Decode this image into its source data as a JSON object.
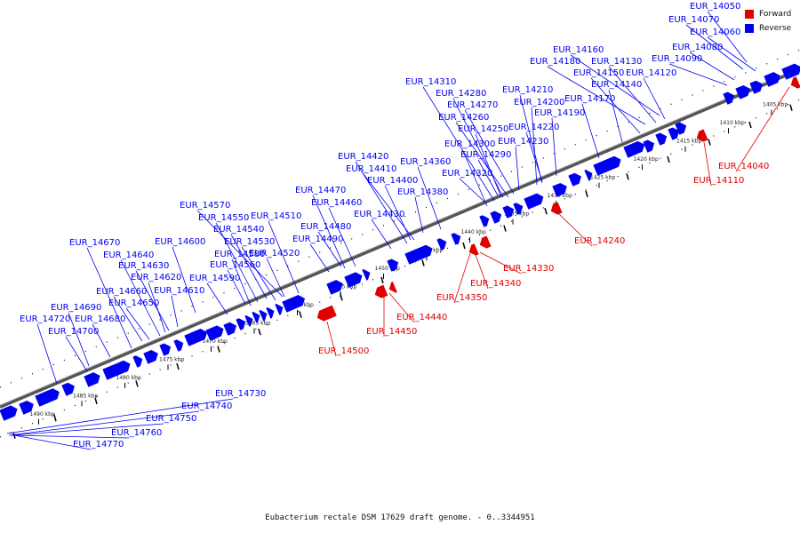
{
  "colors": {
    "forward": "#e00000",
    "reverse": "#0000f0",
    "backbone": "#333333",
    "tick": "#000000"
  },
  "legend": {
    "forward_label": "Forward",
    "reverse_label": "Reverse"
  },
  "caption": "Eubacterium rectale DSM 17629 draft genome. - 0..3344951",
  "kbp_labels": [
    "1405 kbp",
    "1410 kbp",
    "1415 kbp",
    "1420 kbp",
    "1425 kbp",
    "1430 kbp",
    "1435 kbp",
    "1440 kbp",
    "1445 kbp",
    "1450 kbp",
    "1455 kbp",
    "1460 kbp",
    "1465 kbp",
    "1470 kbp",
    "1475 kbp",
    "1480 kbp",
    "1485 kbp",
    "1490 kbp"
  ],
  "forward_genes": [
    "EUR_14040",
    "EUR_14110",
    "EUR_14240",
    "EUR_14330",
    "EUR_14340",
    "EUR_14350",
    "EUR_14440",
    "EUR_14450",
    "EUR_14500"
  ],
  "reverse_genes_lower": [
    "EUR_14730",
    "EUR_14740",
    "EUR_14750",
    "EUR_14760",
    "EUR_14770"
  ],
  "reverse_genes": [
    "EUR_14050",
    "EUR_14070",
    "EUR_14060",
    "EUR_14080",
    "EUR_14090",
    "EUR_14160",
    "EUR_14180",
    "EUR_14130",
    "EUR_14150",
    "EUR_14120",
    "EUR_14140",
    "EUR_14170",
    "EUR_14310",
    "EUR_14280",
    "EUR_14270",
    "EUR_14260",
    "EUR_14210",
    "EUR_14200",
    "EUR_14190",
    "EUR_14250",
    "EUR_14220",
    "EUR_14300",
    "EUR_14230",
    "EUR_14290",
    "EUR_14320",
    "EUR_14420",
    "EUR_14410",
    "EUR_14400",
    "EUR_14360",
    "EUR_14380",
    "EUR_14470",
    "EUR_14460",
    "EUR_14430",
    "EUR_14480",
    "EUR_14490",
    "EUR_14570",
    "EUR_14550",
    "EUR_14510",
    "EUR_14540",
    "EUR_14530",
    "EUR_14670",
    "EUR_14600",
    "EUR_14580",
    "EUR_14520",
    "EUR_14640",
    "EUR_14560",
    "EUR_14630",
    "EUR_14590",
    "EUR_14620",
    "EUR_14610",
    "EUR_14660",
    "EUR_14650",
    "EUR_14690",
    "EUR_14720",
    "EUR_14680",
    "EUR_14700"
  ]
}
